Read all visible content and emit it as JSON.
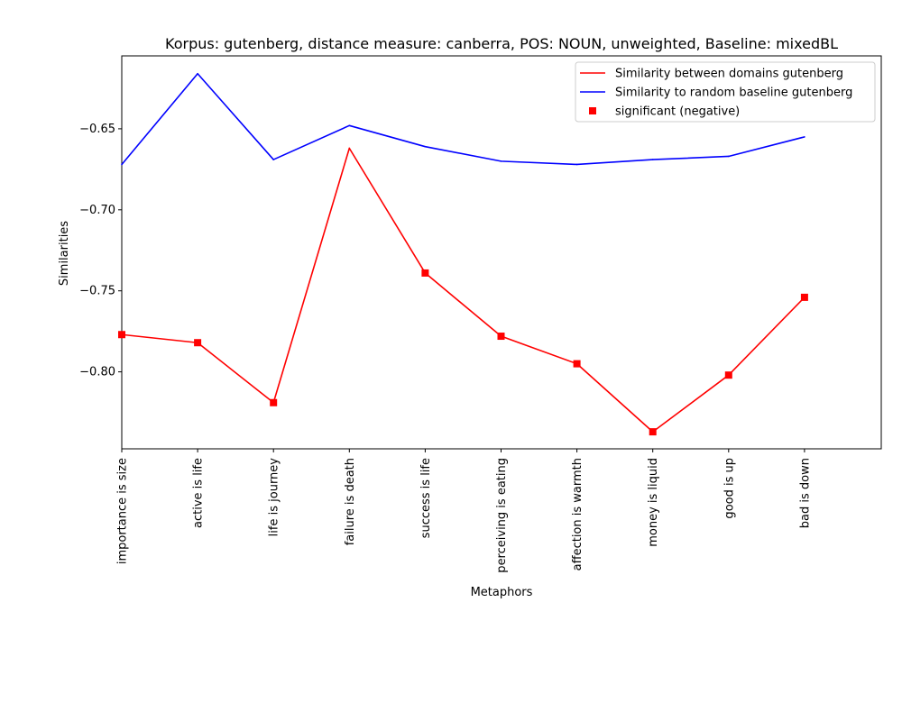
{
  "chart_data": {
    "type": "line",
    "title": "Korpus: gutenberg, distance measure: canberra, POS: NOUN, unweighted, Baseline: mixedBL",
    "xlabel": "Metaphors",
    "ylabel": "Similarities",
    "categories": [
      "importance is size",
      "active is life",
      "life is journey",
      "failure is death",
      "success is life",
      "perceiving is eating",
      "affection is warmth",
      "money is liquid",
      "good is up",
      "bad is down"
    ],
    "ylim": [
      -0.8475,
      -0.605
    ],
    "yticks": [
      -0.65,
      -0.7,
      -0.75,
      -0.8
    ],
    "ytick_labels": [
      "−0.65",
      "−0.70",
      "−0.75",
      "−0.80"
    ],
    "grid": false,
    "legend_position": "upper right",
    "series": [
      {
        "name": "Similarity between domains gutenberg",
        "color": "#ff0000",
        "values": [
          -0.777,
          -0.782,
          -0.819,
          -0.662,
          -0.739,
          -0.778,
          -0.795,
          -0.837,
          -0.802,
          -0.754
        ],
        "marker": "line"
      },
      {
        "name": "Similarity to random baseline gutenberg",
        "color": "#0000ff",
        "values": [
          -0.672,
          -0.616,
          -0.669,
          -0.648,
          -0.661,
          -0.67,
          -0.672,
          -0.669,
          -0.667,
          -0.655
        ],
        "marker": "line"
      },
      {
        "name": "significant (negative)",
        "color": "#ff0000",
        "indices": [
          0,
          1,
          2,
          4,
          5,
          6,
          7,
          8,
          9
        ],
        "marker": "square"
      }
    ]
  }
}
